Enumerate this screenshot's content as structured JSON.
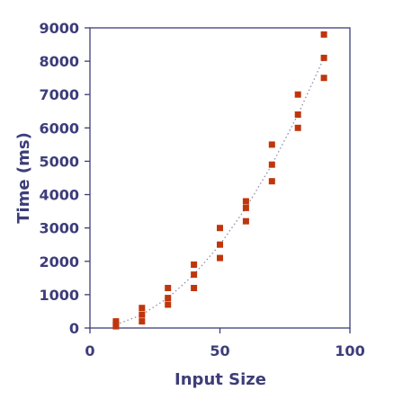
{
  "chart_data": {
    "type": "scatter",
    "title": "",
    "xlabel": "Input Size",
    "ylabel": "Time (ms)",
    "xlim": [
      0,
      100
    ],
    "ylim": [
      0,
      9000
    ],
    "x_ticks": [
      0,
      50,
      100
    ],
    "y_ticks": [
      0,
      1000,
      2000,
      3000,
      4000,
      5000,
      6000,
      7000,
      8000,
      9000
    ],
    "grid": false,
    "legend": "none",
    "marker": "square",
    "colors": {
      "points": "#c0360c",
      "trend": "#8a8fa8",
      "axis": "#3d3d7a",
      "text": "#3d3d7a"
    },
    "series": [
      {
        "points": [
          {
            "x": 10,
            "y": 50
          },
          {
            "x": 10,
            "y": 120
          },
          {
            "x": 10,
            "y": 200
          },
          {
            "x": 20,
            "y": 200
          },
          {
            "x": 20,
            "y": 400
          },
          {
            "x": 20,
            "y": 600
          },
          {
            "x": 30,
            "y": 700
          },
          {
            "x": 30,
            "y": 900
          },
          {
            "x": 30,
            "y": 1200
          },
          {
            "x": 40,
            "y": 1200
          },
          {
            "x": 40,
            "y": 1600
          },
          {
            "x": 40,
            "y": 1900
          },
          {
            "x": 50,
            "y": 2100
          },
          {
            "x": 50,
            "y": 2500
          },
          {
            "x": 50,
            "y": 3000
          },
          {
            "x": 60,
            "y": 3200
          },
          {
            "x": 60,
            "y": 3600
          },
          {
            "x": 60,
            "y": 3800
          },
          {
            "x": 70,
            "y": 4400
          },
          {
            "x": 70,
            "y": 4900
          },
          {
            "x": 70,
            "y": 5500
          },
          {
            "x": 80,
            "y": 6000
          },
          {
            "x": 80,
            "y": 6400
          },
          {
            "x": 80,
            "y": 7000
          },
          {
            "x": 90,
            "y": 7500
          },
          {
            "x": 90,
            "y": 8100
          },
          {
            "x": 90,
            "y": 8800
          }
        ]
      }
    ],
    "trend_line": {
      "style": "dotted",
      "points": [
        {
          "x": 10,
          "y": 100
        },
        {
          "x": 20,
          "y": 400
        },
        {
          "x": 30,
          "y": 900
        },
        {
          "x": 40,
          "y": 1600
        },
        {
          "x": 50,
          "y": 2500
        },
        {
          "x": 60,
          "y": 3600
        },
        {
          "x": 70,
          "y": 4900
        },
        {
          "x": 80,
          "y": 6400
        },
        {
          "x": 90,
          "y": 8100
        }
      ]
    }
  }
}
